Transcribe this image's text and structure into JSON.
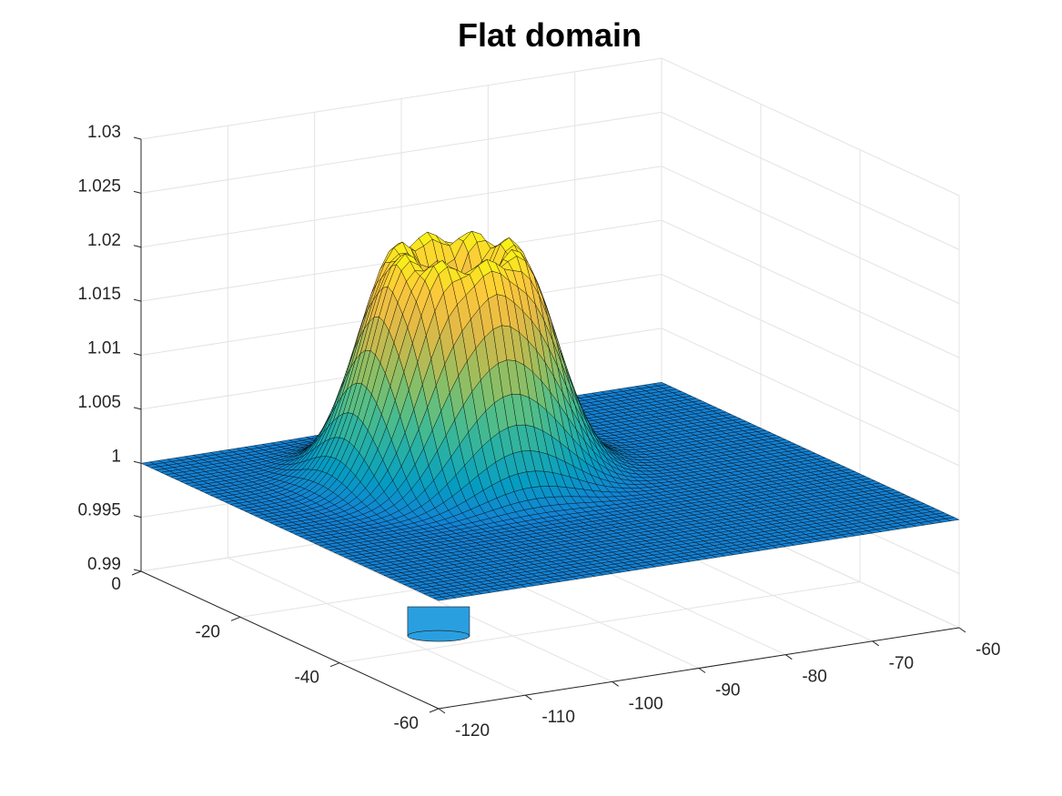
{
  "chart_data": {
    "type": "surface",
    "title": "Flat domain",
    "xlabel": "",
    "ylabel": "",
    "zlabel": "",
    "x_axis": {
      "lim": [
        -120,
        -60
      ],
      "ticks": [
        -120,
        -110,
        -100,
        -90,
        -80,
        -70,
        -60
      ],
      "tick_labels": [
        "-120",
        "-110",
        "-100",
        "-90",
        "-80",
        "-70",
        "-60"
      ]
    },
    "y_axis": {
      "lim": [
        -60,
        0
      ],
      "ticks": [
        0,
        -20,
        -40,
        -60
      ],
      "tick_labels": [
        "0",
        "-20",
        "-40",
        "-60"
      ]
    },
    "z_axis": {
      "lim": [
        0.99,
        1.03
      ],
      "ticks": [
        0.99,
        0.995,
        1,
        1.005,
        1.01,
        1.015,
        1.02,
        1.025,
        1.03
      ],
      "tick_labels": [
        "0.99",
        "0.995",
        "1",
        "1.005",
        "1.01",
        "1.015",
        "1.02",
        "1.025",
        "1.03"
      ]
    },
    "grid": true,
    "colormap": "parula",
    "surface": {
      "base_level": 1.0,
      "bump_center": [
        -95,
        -20
      ],
      "bump_peak": 1.0215,
      "bump_radius_to_rim": 10,
      "crater_center_value": 1.0175,
      "dip_below_min_near": [
        -104,
        -32
      ]
    }
  }
}
